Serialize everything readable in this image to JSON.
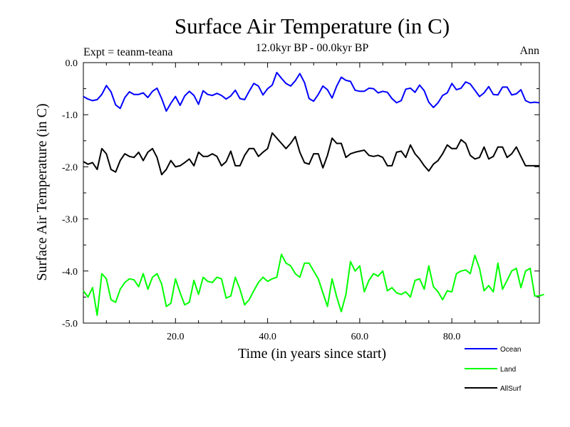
{
  "chart_data": {
    "type": "line",
    "title": "Surface Air Temperature (in C)",
    "subtitle": "12.0kyr BP - 00.0kyr BP",
    "experiment_label": "Expt = teanm-teana",
    "season_label": "Ann",
    "xlabel": "Time (in years since start)",
    "ylabel": "Surface Air Temperature (in C)",
    "xlim": [
      0,
      99
    ],
    "ylim": [
      -5.0,
      0.0
    ],
    "x_ticks": [
      20,
      40,
      60,
      80
    ],
    "x_tick_labels": [
      "20.0",
      "40.0",
      "60.0",
      "80.0"
    ],
    "y_ticks": [
      0,
      -1,
      -2,
      -3,
      -4,
      -5
    ],
    "y_tick_labels": [
      "0.0",
      "-1.0",
      "-2.0",
      "-3.0",
      "-4.0",
      "-5.0"
    ],
    "x_start": 0,
    "x_step": 1,
    "legend_position": "bottom-right",
    "series": [
      {
        "name": "Ocean",
        "color": "#0000ff",
        "values": [
          -0.65,
          -0.7,
          -0.73,
          -0.71,
          -0.61,
          -0.44,
          -0.56,
          -0.81,
          -0.88,
          -0.67,
          -0.56,
          -0.61,
          -0.61,
          -0.58,
          -0.67,
          -0.55,
          -0.49,
          -0.69,
          -0.93,
          -0.78,
          -0.65,
          -0.82,
          -0.64,
          -0.55,
          -0.63,
          -0.8,
          -0.54,
          -0.61,
          -0.63,
          -0.59,
          -0.63,
          -0.7,
          -0.64,
          -0.53,
          -0.69,
          -0.71,
          -0.55,
          -0.4,
          -0.45,
          -0.62,
          -0.5,
          -0.43,
          -0.19,
          -0.3,
          -0.4,
          -0.45,
          -0.35,
          -0.21,
          -0.38,
          -0.69,
          -0.74,
          -0.61,
          -0.45,
          -0.52,
          -0.68,
          -0.45,
          -0.28,
          -0.34,
          -0.36,
          -0.53,
          -0.55,
          -0.55,
          -0.49,
          -0.5,
          -0.58,
          -0.55,
          -0.57,
          -0.69,
          -0.77,
          -0.73,
          -0.51,
          -0.49,
          -0.57,
          -0.43,
          -0.54,
          -0.76,
          -0.86,
          -0.77,
          -0.63,
          -0.58,
          -0.4,
          -0.52,
          -0.49,
          -0.37,
          -0.41,
          -0.53,
          -0.65,
          -0.58,
          -0.46,
          -0.61,
          -0.62,
          -0.47,
          -0.47,
          -0.62,
          -0.6,
          -0.52,
          -0.73,
          -0.77,
          -0.76,
          -0.77
        ]
      },
      {
        "name": "Land",
        "color": "#00ff00",
        "values": [
          -4.38,
          -4.5,
          -4.32,
          -4.85,
          -4.05,
          -4.15,
          -4.55,
          -4.6,
          -4.35,
          -4.22,
          -4.15,
          -4.17,
          -4.3,
          -4.05,
          -4.35,
          -4.12,
          -4.05,
          -4.25,
          -4.68,
          -4.62,
          -4.15,
          -4.42,
          -4.65,
          -4.6,
          -4.18,
          -4.45,
          -4.12,
          -4.2,
          -4.22,
          -4.12,
          -4.15,
          -4.52,
          -4.48,
          -4.12,
          -4.35,
          -4.65,
          -4.55,
          -4.38,
          -4.22,
          -4.12,
          -4.2,
          -4.15,
          -4.12,
          -3.68,
          -3.85,
          -3.9,
          -4.05,
          -4.12,
          -3.85,
          -3.85,
          -4.0,
          -4.15,
          -4.42,
          -4.68,
          -4.15,
          -4.5,
          -4.78,
          -4.45,
          -3.82,
          -4.0,
          -3.9,
          -4.4,
          -4.18,
          -4.05,
          -4.1,
          -4.0,
          -4.38,
          -4.32,
          -4.42,
          -4.45,
          -4.4,
          -4.5,
          -4.18,
          -4.15,
          -4.35,
          -3.9,
          -4.3,
          -4.4,
          -4.55,
          -4.38,
          -4.4,
          -4.05,
          -4.0,
          -3.98,
          -4.05,
          -3.7,
          -3.95,
          -4.38,
          -4.28,
          -4.4,
          -3.85,
          -4.35,
          -4.18,
          -4.0,
          -3.95,
          -4.32,
          -4.0,
          -3.95,
          -4.48,
          -4.48,
          -4.45
        ]
      },
      {
        "name": "AllSurf",
        "color": "#000000",
        "values": [
          -1.9,
          -1.95,
          -1.92,
          -2.05,
          -1.65,
          -1.75,
          -2.05,
          -2.1,
          -1.88,
          -1.75,
          -1.8,
          -1.82,
          -1.72,
          -1.88,
          -1.72,
          -1.65,
          -1.82,
          -2.15,
          -2.05,
          -1.88,
          -2.0,
          -1.98,
          -1.92,
          -1.85,
          -1.98,
          -1.72,
          -1.8,
          -1.8,
          -1.75,
          -1.8,
          -1.98,
          -1.9,
          -1.7,
          -1.98,
          -1.98,
          -1.78,
          -1.65,
          -1.65,
          -1.8,
          -1.72,
          -1.65,
          -1.35,
          -1.45,
          -1.55,
          -1.65,
          -1.55,
          -1.42,
          -1.72,
          -1.92,
          -1.95,
          -1.75,
          -1.75,
          -2.02,
          -1.78,
          -1.45,
          -1.55,
          -1.55,
          -1.82,
          -1.75,
          -1.72,
          -1.7,
          -1.68,
          -1.78,
          -1.8,
          -1.78,
          -1.82,
          -1.98,
          -1.98,
          -1.72,
          -1.7,
          -1.82,
          -1.58,
          -1.75,
          -1.85,
          -1.98,
          -2.08,
          -1.95,
          -1.88,
          -1.75,
          -1.58,
          -1.65,
          -1.65,
          -1.48,
          -1.55,
          -1.78,
          -1.85,
          -1.82,
          -1.62,
          -1.85,
          -1.8,
          -1.62,
          -1.62,
          -1.82,
          -1.75,
          -1.62,
          -1.8,
          -1.98,
          -1.98,
          -1.98,
          -1.98
        ]
      }
    ]
  }
}
